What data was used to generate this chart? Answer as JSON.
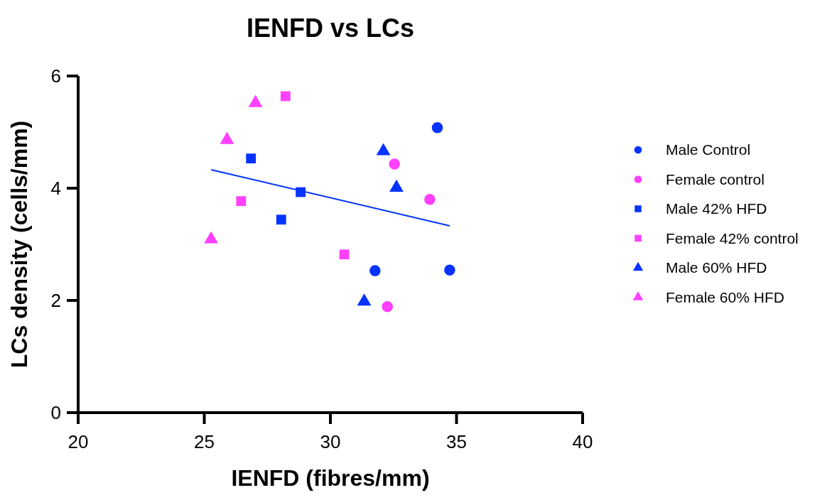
{
  "chart_data": {
    "type": "scatter",
    "title": "IENFD vs LCs",
    "xlabel": "IENFD (fibres/mm)",
    "ylabel": "LCs density (cells/mm)",
    "xlim": [
      20,
      40
    ],
    "xticks": [
      20,
      25,
      30,
      35,
      40
    ],
    "ylim": [
      0,
      6
    ],
    "yticks": [
      0,
      2,
      4,
      6
    ],
    "grid": false,
    "legend": "right",
    "series": [
      {
        "name": "Male Control",
        "color": "#0433ff",
        "marker": "circle",
        "x": [
          34.24,
          31.77,
          34.73
        ],
        "values": [
          5.08,
          2.53,
          2.54
        ]
      },
      {
        "name": "Female control",
        "color": "#ff40ff",
        "marker": "circle",
        "x": [
          32.54,
          33.94,
          32.26
        ],
        "values": [
          4.43,
          3.8,
          1.89
        ]
      },
      {
        "name": "Male 42% HFD",
        "color": "#0433ff",
        "marker": "square",
        "x": [
          26.85,
          28.82,
          28.05
        ],
        "values": [
          4.53,
          3.93,
          3.44
        ]
      },
      {
        "name": "Female 42% control",
        "color": "#ff40ff",
        "marker": "square",
        "x": [
          28.22,
          26.46,
          30.55
        ],
        "values": [
          5.64,
          3.77,
          2.82
        ]
      },
      {
        "name": "Male 60% HFD",
        "color": "#0433ff",
        "marker": "triangle",
        "x": [
          32.1,
          32.62,
          31.34
        ],
        "values": [
          4.66,
          4.01,
          1.98
        ]
      },
      {
        "name": "Female 60% HFD",
        "color": "#ff40ff",
        "marker": "triangle",
        "x": [
          27.03,
          25.9,
          25.27
        ],
        "values": [
          5.52,
          4.86,
          3.09
        ]
      },
      {
        "type": "line",
        "color": "#0433ff",
        "marker": "none",
        "x": [
          25.27,
          34.73
        ],
        "values": [
          4.33,
          3.33
        ]
      }
    ]
  }
}
